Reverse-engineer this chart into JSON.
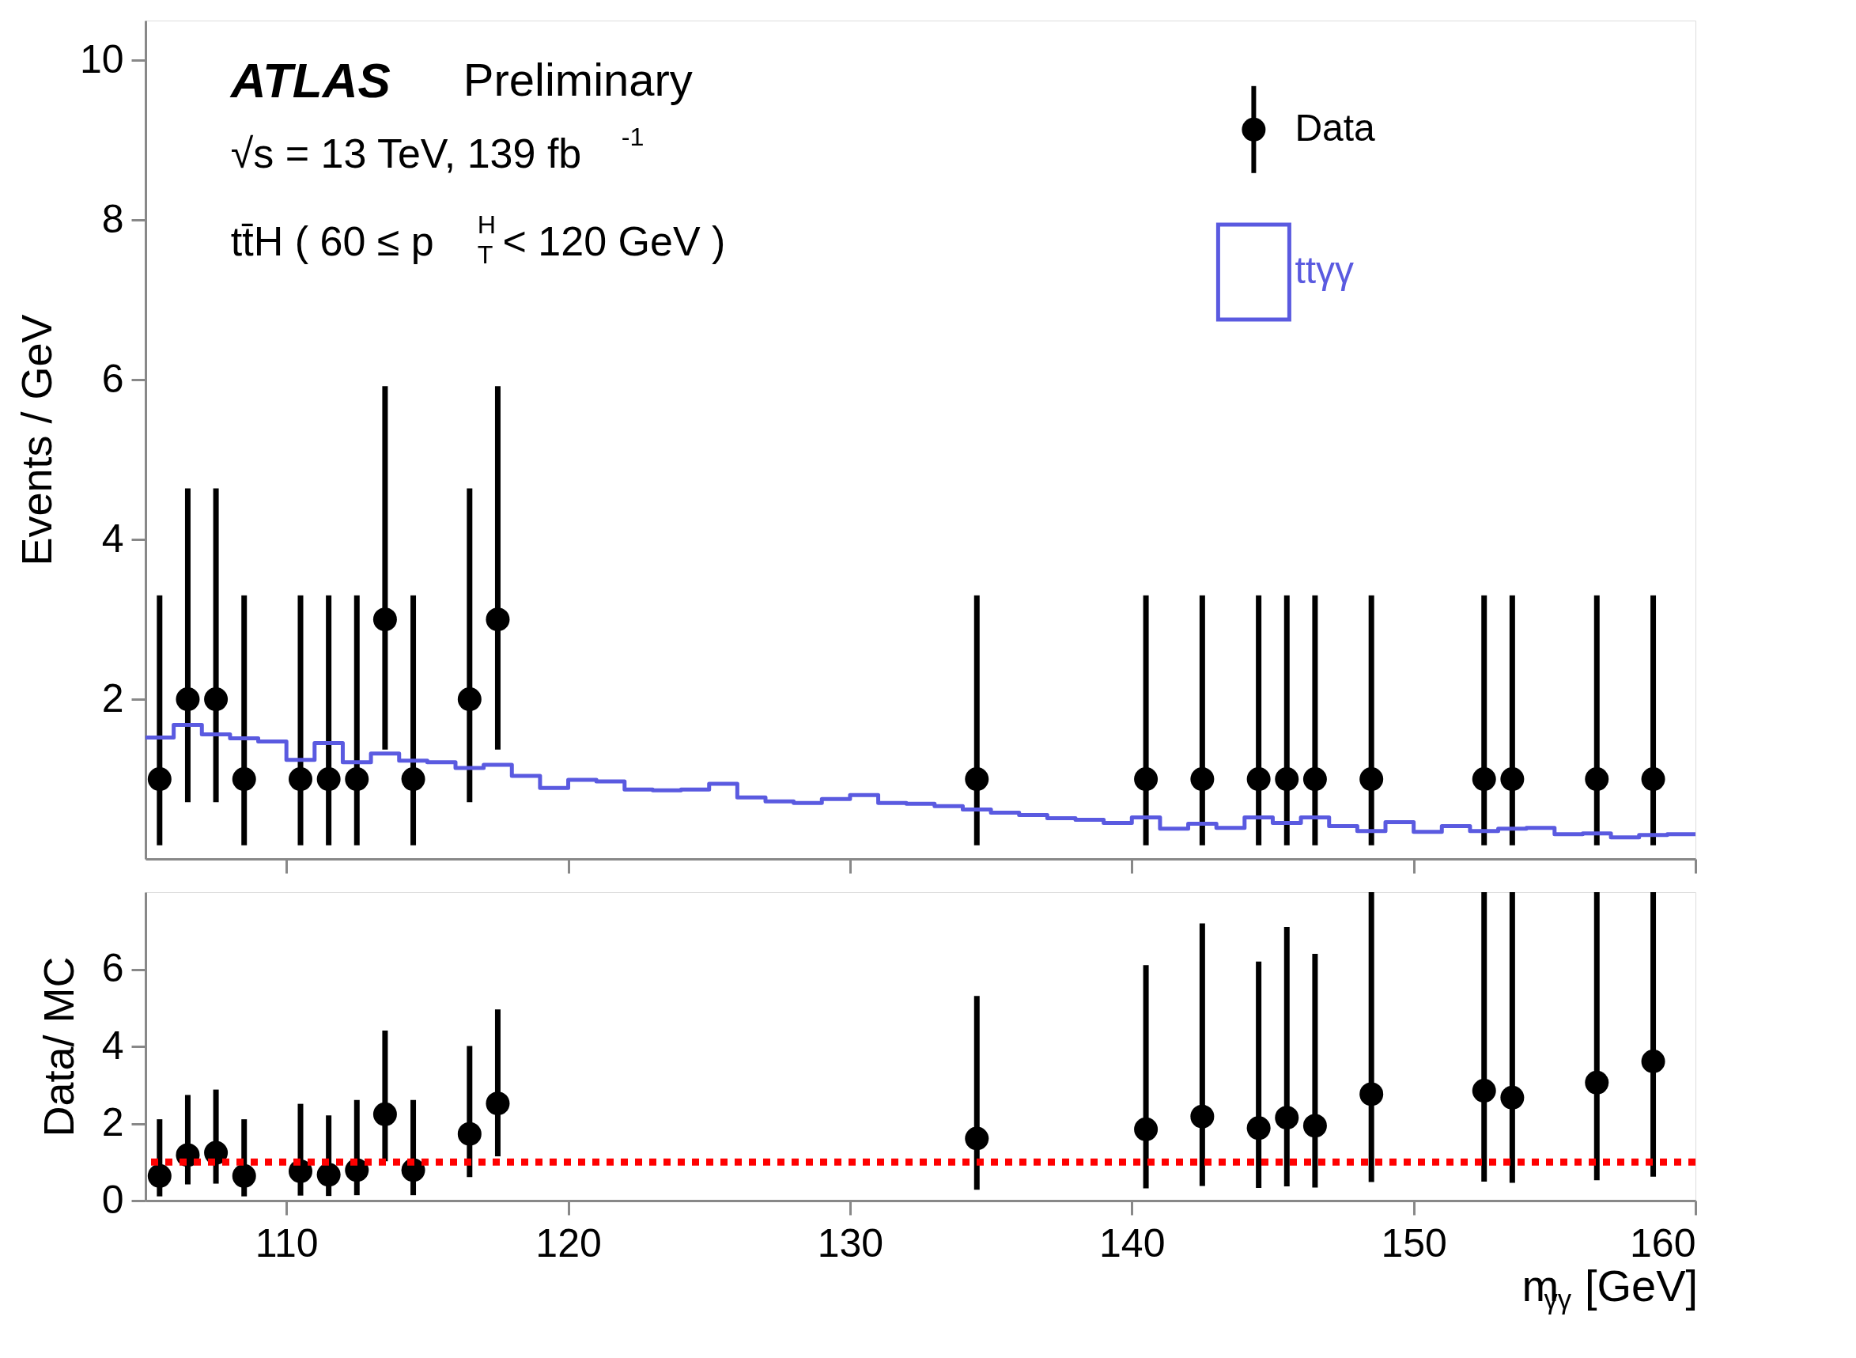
{
  "chart_data": [
    {
      "type": "scatter",
      "ylabel": "Events / GeV",
      "xlim": [
        105,
        160
      ],
      "ylim": [
        0,
        10.5
      ],
      "xticks": [
        {
          "value": 110,
          "label": null
        },
        {
          "value": 120,
          "label": null
        },
        {
          "value": 130,
          "label": null
        },
        {
          "value": 140,
          "label": null
        },
        {
          "value": 150,
          "label": null
        },
        {
          "value": 160,
          "label": null
        }
      ],
      "yticks": [
        2,
        4,
        6,
        8,
        10
      ],
      "tick_labels": "y",
      "legend": "top right",
      "grid": false,
      "annotations": [
        "ATLAS",
        "Preliminary",
        "√s = 13 TeV, 139 fb$^{-1}$",
        "tt̄H ( 60 ≤ p$^{H}$$_{T}$ < 120 GeV )"
      ],
      "series": [
        {
          "name": "Data",
          "color": "#000000",
          "marker": "circle",
          "x": [
            105.5,
            106.5,
            107.5,
            108.5,
            110.5,
            111.5,
            112.5,
            113.5,
            114.5,
            116.5,
            117.5,
            134.5,
            140.5,
            142.5,
            144.5,
            145.5,
            146.5,
            148.5,
            152.5,
            153.5,
            156.5,
            158.5
          ],
          "values": [
            1,
            2,
            2,
            1,
            1,
            1,
            1,
            3,
            1,
            2,
            3,
            1,
            1,
            1,
            1,
            1,
            1,
            1,
            1,
            1,
            1,
            1
          ],
          "errors": [
            [
              0.17,
              3.3
            ],
            [
              0.71,
              4.64
            ],
            [
              0.71,
              4.64
            ],
            [
              0.17,
              3.3
            ],
            [
              0.17,
              3.3
            ],
            [
              0.17,
              3.3
            ],
            [
              0.17,
              3.3
            ],
            [
              1.37,
              5.92
            ],
            [
              0.17,
              3.3
            ],
            [
              0.71,
              4.64
            ],
            [
              1.37,
              5.92
            ],
            [
              0.17,
              3.3
            ],
            [
              0.17,
              3.3
            ],
            [
              0.17,
              3.3
            ],
            [
              0.17,
              3.3
            ],
            [
              0.17,
              3.3
            ],
            [
              0.17,
              3.3
            ],
            [
              0.17,
              3.3
            ],
            [
              0.17,
              3.3
            ],
            [
              0.17,
              3.3
            ],
            [
              0.17,
              3.3
            ],
            [
              0.17,
              3.3
            ]
          ]
        },
        {
          "name": "ttγγ",
          "type": "histogram",
          "color": "#5a5ae0",
          "bins": [
            105,
            106,
            107,
            108,
            109,
            110,
            111,
            112,
            113,
            114,
            115,
            116,
            117,
            118,
            119,
            120,
            121,
            122,
            123,
            124,
            125,
            126,
            127,
            128,
            129,
            130,
            131,
            132,
            133,
            134,
            135,
            136,
            137,
            138,
            139,
            140,
            141,
            142,
            143,
            144,
            145,
            146,
            147,
            148,
            149,
            150,
            151,
            152,
            153,
            154,
            155,
            156,
            157,
            158,
            159,
            160
          ],
          "values": [
            1.52,
            1.68,
            1.56,
            1.51,
            1.47,
            1.24,
            1.45,
            1.21,
            1.32,
            1.23,
            1.21,
            1.14,
            1.18,
            1.04,
            0.89,
            0.99,
            0.97,
            0.87,
            0.86,
            0.87,
            0.94,
            0.77,
            0.72,
            0.7,
            0.75,
            0.8,
            0.7,
            0.69,
            0.66,
            0.62,
            0.58,
            0.55,
            0.51,
            0.49,
            0.45,
            0.52,
            0.38,
            0.44,
            0.39,
            0.52,
            0.45,
            0.52,
            0.41,
            0.35,
            0.46,
            0.34,
            0.41,
            0.35,
            0.38,
            0.39,
            0.31,
            0.32,
            0.27,
            0.3,
            0.31
          ]
        }
      ]
    },
    {
      "type": "scatter",
      "ylabel": "Data/ MC",
      "xlabel": "m$_{γγ}$ [GeV]",
      "xlim": [
        105,
        160
      ],
      "ylim": [
        0,
        8
      ],
      "xticks": [
        110,
        120,
        130,
        140,
        150,
        160
      ],
      "yticks": [
        0,
        2,
        4,
        6
      ],
      "grid": false,
      "legend": false,
      "ref_lines": [
        {
          "axis": "y",
          "value": 1,
          "color": "#ff0000",
          "line_style": "dotted"
        }
      ],
      "series": [
        {
          "color": "#000000",
          "marker": "circle",
          "x": [
            105.5,
            106.5,
            107.5,
            108.5,
            110.5,
            111.5,
            112.5,
            113.5,
            114.5,
            116.5,
            117.5,
            134.5,
            140.5,
            142.5,
            144.5,
            145.5,
            146.5,
            148.5,
            152.5,
            153.5,
            156.5,
            158.5
          ],
          "values": [
            0.64,
            1.18,
            1.24,
            0.64,
            0.76,
            0.67,
            0.79,
            2.24,
            0.79,
            1.73,
            2.52,
            1.61,
            1.85,
            2.18,
            1.88,
            2.15,
            1.94,
            2.76,
            2.85,
            2.67,
            3.06,
            3.61
          ],
          "errors": [
            [
              0.11,
              2.11
            ],
            [
              0.42,
              2.74
            ],
            [
              0.44,
              2.88
            ],
            [
              0.11,
              2.11
            ],
            [
              0.13,
              2.51
            ],
            [
              0.12,
              2.21
            ],
            [
              0.14,
              2.61
            ],
            [
              1.02,
              4.41
            ],
            [
              0.14,
              2.61
            ],
            [
              0.61,
              4.01
            ],
            [
              1.15,
              4.96
            ],
            [
              0.28,
              5.31
            ],
            [
              0.32,
              6.11
            ],
            [
              0.38,
              7.19
            ],
            [
              0.33,
              6.2
            ],
            [
              0.37,
              7.1
            ],
            [
              0.34,
              6.4
            ],
            [
              0.48,
              8
            ],
            [
              0.49,
              8
            ],
            [
              0.46,
              8
            ],
            [
              0.53,
              8
            ],
            [
              0.62,
              8
            ]
          ]
        }
      ]
    }
  ]
}
